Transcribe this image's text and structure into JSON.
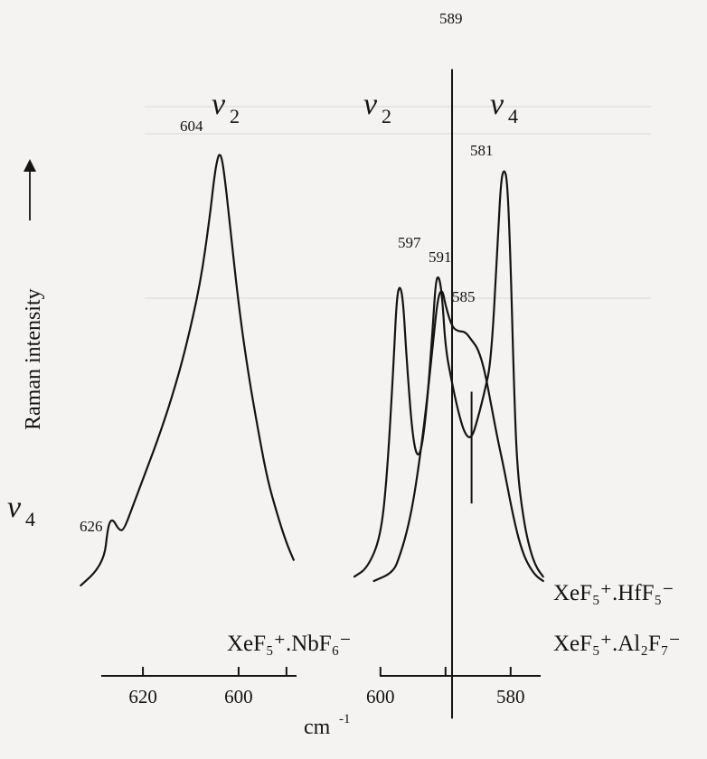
{
  "chart_data": {
    "type": "line",
    "xlabel": "cm",
    "xlabel_exponent": "-1",
    "ylabel": "Raman intensity",
    "x_reversed": true,
    "grid": false,
    "panels": [
      {
        "compound": "XeF₅⁺.NbF₆⁻",
        "xlim": [
          634,
          586
        ],
        "ticks": [
          620,
          600,
          590
        ],
        "tick_labels": [
          "620",
          "600"
        ],
        "band_labels": [
          {
            "text": "ν",
            "sub": "2",
            "x": 599
          },
          {
            "text": "ν",
            "sub": "4",
            "x": 631
          }
        ],
        "peak_labels": [
          {
            "text": "604",
            "x": 604
          },
          {
            "text": "626",
            "x": 626
          }
        ],
        "series": [
          {
            "x": [
              633,
              630,
              628,
              627.5,
              627,
              626.2,
              625,
              624,
              622,
              620,
              617,
              614,
              611,
              608,
              606,
              605,
              604.3,
              604,
              603.6,
              603,
              602,
              600,
              598,
              596,
              594,
              592,
              590,
              588.5
            ],
            "y": [
              0.03,
              0.06,
              0.1,
              0.15,
              0.18,
              0.185,
              0.16,
              0.16,
              0.22,
              0.28,
              0.37,
              0.47,
              0.59,
              0.74,
              0.9,
              1.0,
              1.04,
              1.045,
              1.04,
              1.0,
              0.9,
              0.69,
              0.53,
              0.4,
              0.28,
              0.2,
              0.13,
              0.09
            ]
          }
        ]
      },
      {
        "compound": "XeF₅⁺.HfF₅⁻",
        "compound2": "XeF₅⁺.Al₂F₇⁻",
        "xlim": [
          604,
          574
        ],
        "ticks": [
          600,
          590,
          580
        ],
        "tick_labels": [
          "600",
          "580"
        ],
        "band_labels": [
          {
            "text": "ν",
            "sub": "2",
            "x": 596
          },
          {
            "text": "ν",
            "sub": "4",
            "x": 578
          }
        ],
        "peak_labels": [
          {
            "text": "589",
            "x": 589
          },
          {
            "text": "597",
            "x": 597
          },
          {
            "text": "591",
            "x": 591
          },
          {
            "text": "585",
            "x": 585
          },
          {
            "text": "581",
            "x": 581
          }
        ],
        "marker_lines": [
          {
            "x": 589,
            "y_top": 1.23,
            "y_bottom": -0.28
          },
          {
            "x": 586,
            "y_top": 0.48,
            "y_bottom": 0.22
          }
        ],
        "series": [
          {
            "name": "XeF₅⁺.HfF₅⁻",
            "x": [
              604,
              602,
              600,
              599,
              598,
              597.5,
              597,
              596.5,
              596,
              595,
              594,
              593,
              592,
              591.5,
              591,
              590.5,
              590,
              589,
              588,
              587,
              586,
              585,
              584,
              583,
              582,
              581.5,
              581,
              580.5,
              580,
              579.5,
              579,
              578,
              577,
              576,
              575
            ],
            "y": [
              0.05,
              0.07,
              0.14,
              0.28,
              0.54,
              0.7,
              0.73,
              0.69,
              0.56,
              0.36,
              0.32,
              0.42,
              0.62,
              0.74,
              0.75,
              0.7,
              0.58,
              0.5,
              0.43,
              0.38,
              0.37,
              0.42,
              0.48,
              0.55,
              0.82,
              0.97,
              1.0,
              0.97,
              0.78,
              0.5,
              0.3,
              0.18,
              0.11,
              0.07,
              0.05
            ]
          },
          {
            "name": "XeF₅⁺.Al₂F₇⁻",
            "x": [
              601,
              598,
              597,
              596,
              595,
              594,
              593,
              592,
              591.2,
              590.5,
              590,
              589,
              588,
              587,
              586,
              585,
              584,
              583,
              582,
              581,
              580,
              579,
              578,
              577,
              576,
              575
            ],
            "y": [
              0.04,
              0.06,
              0.1,
              0.15,
              0.22,
              0.32,
              0.44,
              0.58,
              0.7,
              0.72,
              0.68,
              0.63,
              0.62,
              0.62,
              0.6,
              0.58,
              0.53,
              0.45,
              0.37,
              0.3,
              0.22,
              0.15,
              0.1,
              0.07,
              0.05,
              0.04
            ]
          }
        ]
      }
    ]
  }
}
